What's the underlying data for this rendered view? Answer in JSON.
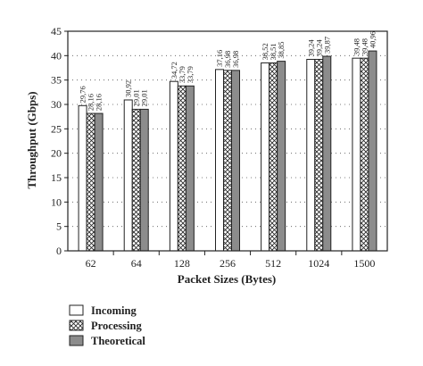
{
  "chart_data": {
    "type": "bar",
    "xlabel": "Packet Sizes (Bytes)",
    "ylabel": "Throughput (Gbps)",
    "ylim": [
      0,
      45
    ],
    "yticks": [
      "0",
      "5",
      "10",
      "15",
      "20",
      "25",
      "30",
      "35",
      "40",
      "45"
    ],
    "grid": "dotted-horizontal",
    "legend_position": "bottom-left",
    "categories": [
      "62",
      "64",
      "128",
      "256",
      "512",
      "1024",
      "1500"
    ],
    "series": [
      {
        "name": "Incoming",
        "pattern": "white",
        "values": [
          29.76,
          30.92,
          34.72,
          37.16,
          38.52,
          39.24,
          39.48
        ],
        "labels": [
          "29,76",
          "30,92",
          "34,72",
          "37,16",
          "38,52",
          "39,24",
          "39,48"
        ]
      },
      {
        "name": "Processing",
        "pattern": "crosshatch",
        "values": [
          28.16,
          29.01,
          33.79,
          36.98,
          38.51,
          39.24,
          39.48
        ],
        "labels": [
          "28,16",
          "29,01",
          "33,79",
          "36,98",
          "38,51",
          "39,24",
          "39,48"
        ]
      },
      {
        "name": "Theoretical",
        "pattern": "gray",
        "values": [
          28.16,
          29.01,
          33.79,
          36.98,
          38.85,
          39.87,
          40.96
        ],
        "labels": [
          "28,16",
          "29,01",
          "33,79",
          "36,98",
          "38,85",
          "39,87",
          "40,96"
        ]
      }
    ],
    "colors": {
      "incoming": "#ffffff",
      "processing": "#ffffff",
      "theoretical": "#8c8c8c",
      "outline": "#222222"
    }
  }
}
